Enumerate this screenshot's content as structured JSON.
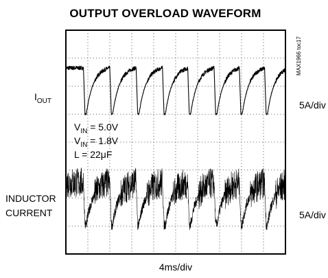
{
  "chart_data": {
    "type": "line",
    "title": "OUTPUT OVERLOAD WAVEFORM",
    "side_tag": "MAX1966 toc17",
    "xlabel": "4ms/div",
    "x_divisions": 10,
    "y_divisions": 8,
    "grid": true,
    "conditions": [
      {
        "symbol": "V",
        "subscript": "IN",
        "value": " = 5.0V"
      },
      {
        "symbol": "V",
        "subscript": "IN",
        "value": " = 1.8V"
      },
      {
        "symbol": "L",
        "subscript": "",
        "value": " =  22μF"
      }
    ],
    "series": [
      {
        "name_main": "I",
        "name_sub": "OUT",
        "scale": "5A/div",
        "baseline_div": 5.3,
        "high_div": 6.65,
        "low_div": 5.0,
        "noise": 0.07
      },
      {
        "name_line1": "INDUCTOR",
        "name_line2": "CURRENT",
        "scale": "5A/div",
        "baseline_div": 1.35,
        "high_div": 2.55,
        "low_div": 1.05,
        "noise": 0.55
      }
    ],
    "dip_times_div": [
      0.8,
      2.0,
      3.2,
      4.4,
      5.55,
      6.75,
      7.9,
      9.05
    ],
    "dip_fall_div": 0.07,
    "dip_bottom_div": 0.06,
    "recover_div": 1.05
  }
}
